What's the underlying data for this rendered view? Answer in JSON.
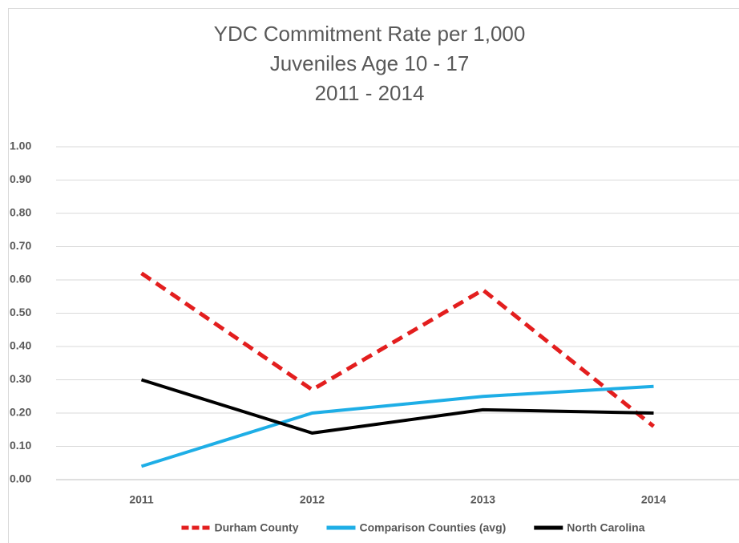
{
  "chart_data": {
    "type": "line",
    "title": [
      "YDC Commitment Rate per 1,000",
      "Juveniles Age 10 - 17",
      "2011 - 2014"
    ],
    "categories": [
      "2011",
      "2012",
      "2013",
      "2014"
    ],
    "series": [
      {
        "name": "Durham County",
        "color": "#e31e1e",
        "line_style": "dashed",
        "values": [
          0.62,
          0.27,
          0.57,
          0.16
        ]
      },
      {
        "name": "Comparison Counties (avg)",
        "color": "#1eaee6",
        "line_style": "solid",
        "values": [
          0.04,
          0.2,
          0.25,
          0.28
        ]
      },
      {
        "name": "North Carolina",
        "color": "#000000",
        "line_style": "solid",
        "values": [
          0.3,
          0.14,
          0.21,
          0.2
        ]
      }
    ],
    "ylim": [
      0,
      1
    ],
    "yticks": [
      {
        "value": 0,
        "label": "0.00"
      },
      {
        "value": 0.1,
        "label": "0.10"
      },
      {
        "value": 0.2,
        "label": "0.20"
      },
      {
        "value": 0.3,
        "label": "0.30"
      },
      {
        "value": 0.4,
        "label": "0.40"
      },
      {
        "value": 0.5,
        "label": "0.50"
      },
      {
        "value": 0.6,
        "label": "0.60"
      },
      {
        "value": 0.7,
        "label": "0.70"
      },
      {
        "value": 0.8,
        "label": "0.80"
      },
      {
        "value": 0.9,
        "label": "0.90"
      },
      {
        "value": 1,
        "label": "1.00"
      }
    ],
    "grid": true,
    "legend": "bottom"
  }
}
